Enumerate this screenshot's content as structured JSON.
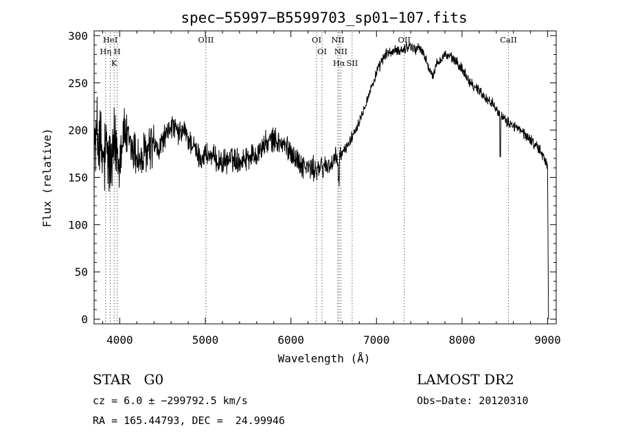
{
  "chart_data": {
    "type": "line",
    "title": "spec−55997−B5599703_sp01−107.fits",
    "xlabel": "Wavelength (Å)",
    "ylabel": "Flux (relative)",
    "xlim": [
      3700,
      9100
    ],
    "ylim": [
      -5,
      305
    ],
    "xticks": [
      4000,
      5000,
      6000,
      7000,
      8000,
      9000
    ],
    "yticks": [
      0,
      50,
      100,
      150,
      200,
      250,
      300
    ],
    "grid": false,
    "series": [
      {
        "x": [
          3700,
          3750,
          3800,
          3850,
          3900,
          3950,
          4000,
          4050,
          4100,
          4150,
          4200,
          4250,
          4300,
          4350,
          4400,
          4450,
          4500,
          4550,
          4600,
          4650,
          4700,
          4750,
          4800,
          4850,
          4900,
          4950,
          5000,
          5100,
          5200,
          5300,
          5400,
          5500,
          5600,
          5700,
          5800,
          5900,
          6000,
          6100,
          6200,
          6300,
          6400,
          6500,
          6550,
          6600,
          6700,
          6800,
          6900,
          7000,
          7050,
          7100,
          7150,
          7200,
          7300,
          7400,
          7450,
          7500,
          7550,
          7600,
          7650,
          7700,
          7800,
          7900,
          8000,
          8100,
          8200,
          8300,
          8400,
          8450,
          8500,
          8600,
          8700,
          8800,
          8900,
          8950,
          9000,
          9010
        ],
        "y": [
          180,
          195,
          165,
          175,
          160,
          185,
          175,
          200,
          185,
          180,
          175,
          165,
          175,
          180,
          185,
          175,
          190,
          195,
          205,
          200,
          195,
          200,
          190,
          185,
          175,
          170,
          175,
          170,
          165,
          170,
          168,
          172,
          175,
          185,
          190,
          185,
          178,
          165,
          160,
          158,
          162,
          165,
          170,
          175,
          190,
          210,
          235,
          260,
          270,
          280,
          282,
          283,
          285,
          290,
          285,
          288,
          280,
          270,
          255,
          270,
          280,
          275,
          265,
          250,
          242,
          232,
          225,
          215,
          210,
          205,
          198,
          190,
          180,
          172,
          162,
          0
        ]
      }
    ],
    "lines": [
      {
        "label": "HeI",
        "x": 3889
      },
      {
        "label": "Hη",
        "x": 3835
      },
      {
        "label": "H",
        "x": 3970
      },
      {
        "label": "K",
        "x": 3934
      },
      {
        "label": "OIII",
        "x": 5007
      },
      {
        "label": "OI",
        "x": 6300
      },
      {
        "label": "OI",
        "x": 6364
      },
      {
        "label": "NII",
        "x": 6548
      },
      {
        "label": "NII",
        "x": 6583
      },
      {
        "label": "Hα",
        "x": 6563
      },
      {
        "label": "SII",
        "x": 6716
      },
      {
        "label": "OII",
        "x": 7325
      },
      {
        "label": "CaII",
        "x": 8542
      }
    ]
  },
  "info": {
    "class_line": "STAR   G0",
    "survey": "LAMOST DR2",
    "cz_line": "cz = 6.0 ± −299792.5 km/s",
    "obs_date": "Obs−Date: 20120310",
    "coords_line": "RA = 165.44793, DEC =  24.99946"
  }
}
